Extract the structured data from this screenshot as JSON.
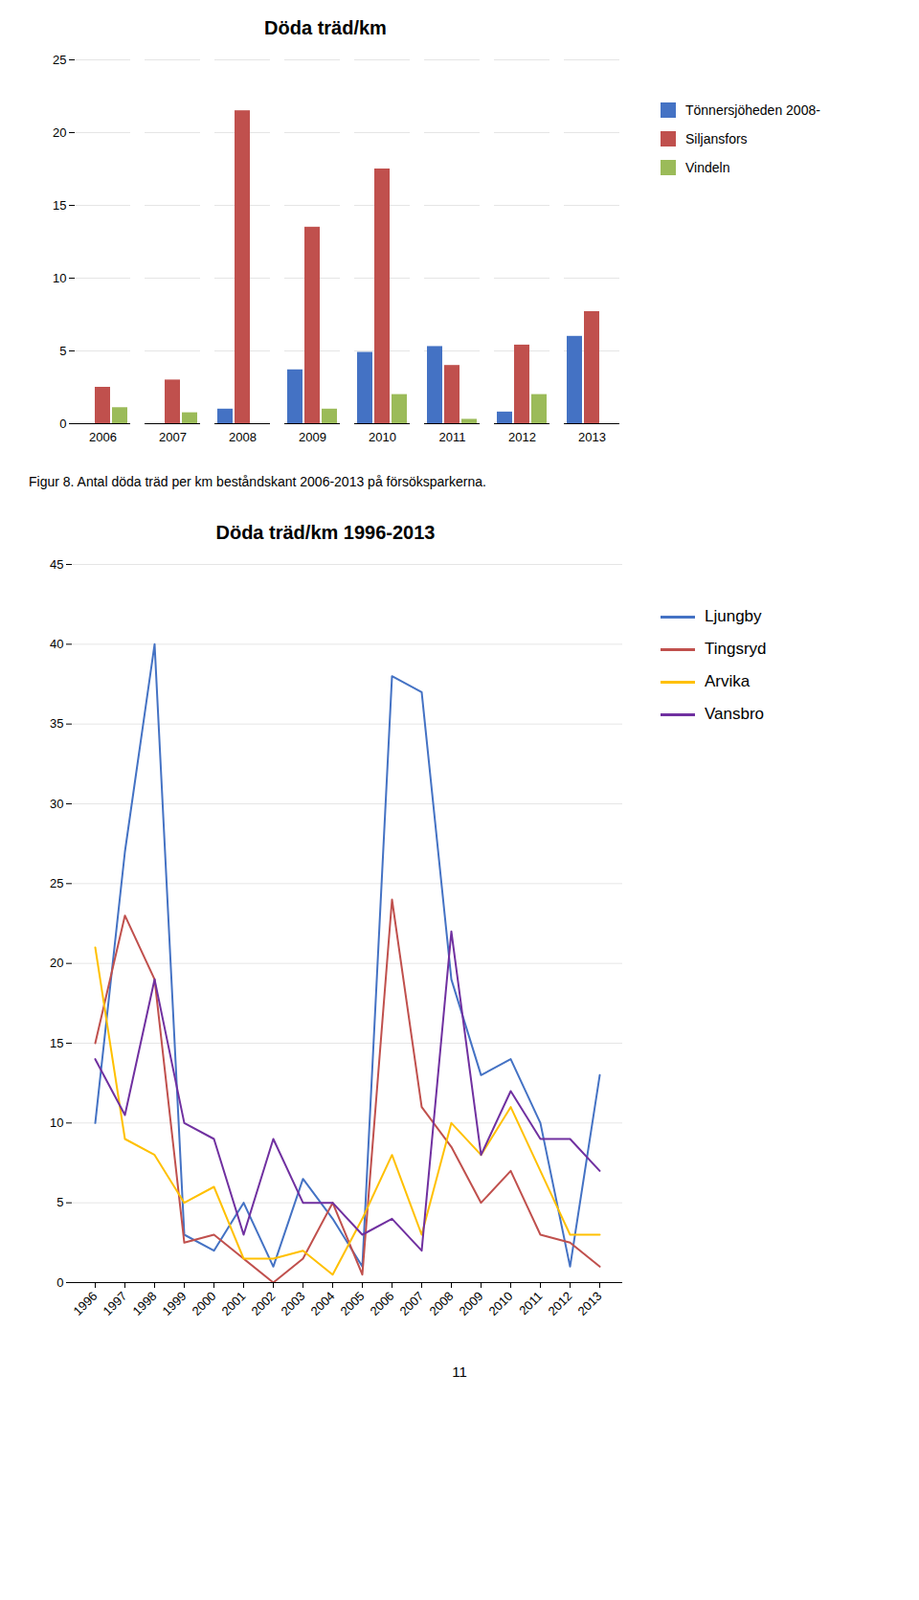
{
  "chart_data": [
    {
      "type": "bar",
      "title": "Döda träd/km",
      "categories": [
        "2006",
        "2007",
        "2008",
        "2009",
        "2010",
        "2011",
        "2012",
        "2013"
      ],
      "series": [
        {
          "name": "Tönnersjöheden 2008-",
          "color": "#4472C4",
          "values": [
            0,
            0,
            1,
            3.7,
            4.9,
            5.3,
            0.8,
            6.0
          ]
        },
        {
          "name": "Siljansfors",
          "color": "#C0504D",
          "values": [
            2.5,
            3.0,
            21.5,
            13.5,
            17.5,
            4.0,
            5.4,
            7.7
          ]
        },
        {
          "name": "Vindeln",
          "color": "#9BBB59",
          "values": [
            1.1,
            0.75,
            0,
            1.0,
            2.0,
            0.3,
            2.0,
            0
          ]
        }
      ],
      "ylim": [
        0,
        25
      ],
      "yticks": [
        0,
        5,
        10,
        15,
        20,
        25
      ],
      "grid": true,
      "legend": "right"
    },
    {
      "type": "line",
      "title": "Döda träd/km 1996-2013",
      "categories": [
        "1996",
        "1997",
        "1998",
        "1999",
        "2000",
        "2001",
        "2002",
        "2003",
        "2004",
        "2005",
        "2006",
        "2007",
        "2008",
        "2009",
        "2010",
        "2011",
        "2012",
        "2013"
      ],
      "series": [
        {
          "name": "Ljungby",
          "color": "#4472C4",
          "values": [
            10,
            27,
            40,
            3,
            2,
            5,
            1,
            6.5,
            4,
            1,
            38,
            37,
            19,
            13,
            14,
            10,
            1,
            13
          ]
        },
        {
          "name": "Tingsryd",
          "color": "#C0504D",
          "values": [
            15,
            23,
            19,
            2.5,
            3,
            1.5,
            0,
            1.5,
            5,
            0.5,
            24,
            11,
            8.5,
            5,
            7,
            3,
            2.5,
            1
          ]
        },
        {
          "name": "Arvika",
          "color": "#FFC000",
          "values": [
            21,
            9,
            8,
            5,
            6,
            1.5,
            1.5,
            2,
            0.5,
            4,
            8,
            3,
            10,
            8,
            11,
            7,
            3,
            3
          ]
        },
        {
          "name": "Vansbro",
          "color": "#7030A0",
          "values": [
            14,
            10.5,
            19,
            10,
            9,
            3,
            9,
            5,
            5,
            3,
            4,
            2,
            22,
            8,
            12,
            9,
            9,
            7
          ]
        }
      ],
      "ylim": [
        0,
        45
      ],
      "yticks": [
        0,
        5,
        10,
        15,
        20,
        25,
        30,
        35,
        40,
        45
      ],
      "grid": true,
      "legend": "right"
    }
  ],
  "caption": "Figur 8.  Antal döda träd per km beståndskant 2006-2013 på försöksparkerna.",
  "page_number": "11"
}
